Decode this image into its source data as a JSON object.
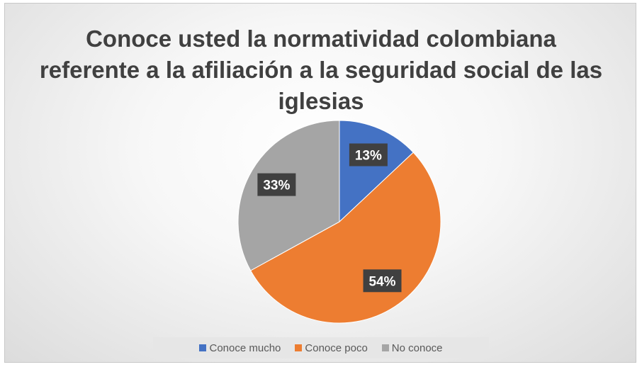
{
  "chart_data": {
    "type": "pie",
    "title_lines": [
      "Conoce usted la normatividad colombiana",
      "referente a la afiliación a la seguridad social de las",
      "iglesias"
    ],
    "categories": [
      "Conoce mucho",
      "Conoce poco",
      "No conoce"
    ],
    "values": [
      13,
      54,
      33
    ],
    "labels": [
      "13%",
      "54%",
      "33%"
    ],
    "colors": [
      "#4472c4",
      "#ed7d31",
      "#a5a5a5"
    ],
    "legend_position": "bottom"
  }
}
